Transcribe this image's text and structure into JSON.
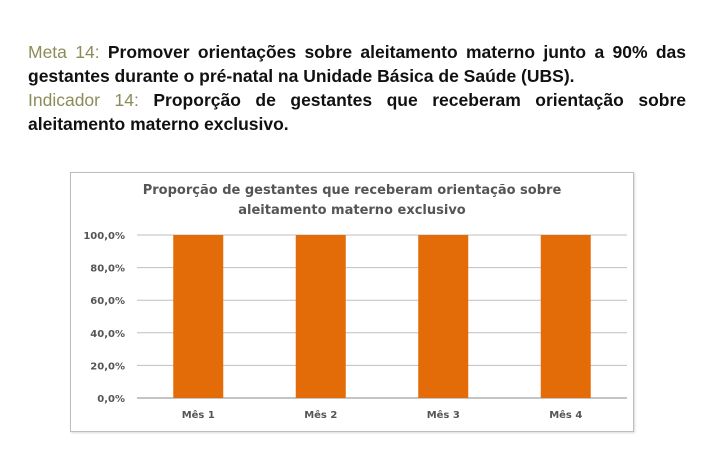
{
  "text": {
    "meta_label": "Meta 14:",
    "meta_body": " Promover orientações sobre aleitamento materno junto a 90% das gestantes durante o pré-natal na Unidade Básica de Saúde (UBS).",
    "indicator_label": "Indicador 14:",
    "indicator_body": " Proporção de gestantes que receberam orientação sobre aleitamento materno exclusivo."
  },
  "chart_data": {
    "type": "bar",
    "title_line1": "Proporção de gestantes que receberam orientação sobre",
    "title_line2": "aleitamento materno exclusivo",
    "categories": [
      "Mês 1",
      "Mês 2",
      "Mês 3",
      "Mês 4"
    ],
    "values": [
      100,
      100,
      100,
      100
    ],
    "yticks": [
      "0,0%",
      "20,0%",
      "40,0%",
      "60,0%",
      "80,0%",
      "100,0%"
    ],
    "ylim": [
      0,
      100
    ],
    "grid": true,
    "bar_color": "#E36C09",
    "grid_color": "#bfbfbf"
  }
}
